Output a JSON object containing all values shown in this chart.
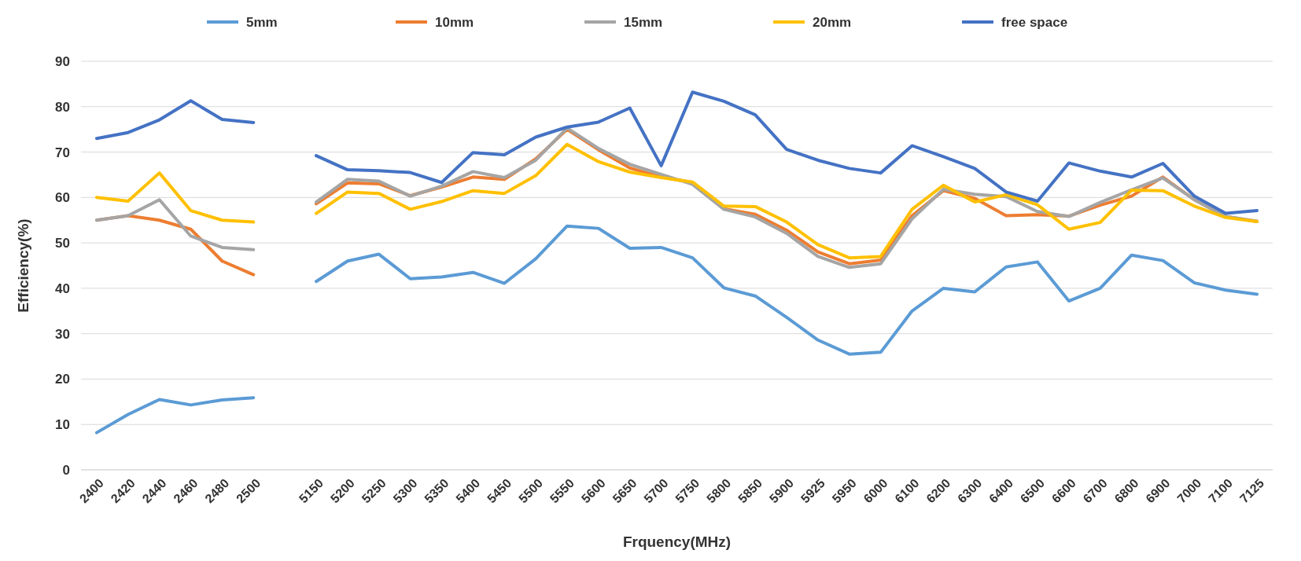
{
  "chart_data": {
    "type": "line",
    "xlabel": "Frquency(MHz)",
    "ylabel": "Efficiency(%)",
    "categories": [
      "2400",
      "2420",
      "2440",
      "2460",
      "2480",
      "2500",
      null,
      "5150",
      "5200",
      "5250",
      "5300",
      "5350",
      "5400",
      "5450",
      "5500",
      "5550",
      "5600",
      "5650",
      "5700",
      "5750",
      "5800",
      "5850",
      "5900",
      "5925",
      "5950",
      "6000",
      "6100",
      "6200",
      "6300",
      "6400",
      "6500",
      "6600",
      "6700",
      "6800",
      "6900",
      "7000",
      "7100",
      "7125"
    ],
    "ylim": [
      0,
      90
    ],
    "yticks": [
      0,
      10,
      20,
      30,
      40,
      50,
      60,
      70,
      80,
      90
    ],
    "grid": "y",
    "legend": "top",
    "marker": "none",
    "line_style": "solid",
    "series": [
      {
        "name": "5mm",
        "color": "#5b9bd5",
        "values": [
          8.2,
          12.2,
          15.5,
          14.3,
          15.4,
          15.9,
          null,
          41.5,
          46,
          47.5,
          42.1,
          42.5,
          43.5,
          41.1,
          46.5,
          53.7,
          53.2,
          48.8,
          49,
          46.7,
          40.1,
          38.3,
          33.6,
          28.6,
          25.5,
          25.9,
          35,
          40,
          39.2,
          44.7,
          45.8,
          37.2,
          40,
          47.3,
          46.1,
          41.2,
          39.6,
          38.7
        ]
      },
      {
        "name": "10mm",
        "color": "#ed7d31",
        "values": [
          55,
          56,
          55,
          53,
          46,
          43,
          null,
          58.6,
          63.2,
          63,
          60.4,
          62.3,
          64.5,
          64,
          68.5,
          75,
          70.5,
          66.5,
          64.5,
          63.3,
          57.5,
          56.3,
          52.8,
          48,
          45.4,
          46.2,
          56,
          61.5,
          59.8,
          56,
          56.2,
          55.9,
          58.3,
          60.3,
          64.5,
          59.5,
          55.8,
          54.7
        ]
      },
      {
        "name": "15mm",
        "color": "#a5a5a5",
        "values": [
          55,
          56,
          59.5,
          51.5,
          49,
          48.5,
          null,
          59,
          64,
          63.6,
          60.3,
          62.5,
          65.7,
          64.4,
          68.2,
          75.3,
          70.8,
          67.3,
          65.1,
          62.9,
          57.4,
          55.7,
          52.1,
          47,
          44.6,
          45.4,
          55.3,
          61.8,
          60.7,
          60.2,
          56.9,
          55.8,
          58.9,
          61.7,
          64.3,
          59.5,
          55.8,
          54.8
        ]
      },
      {
        "name": "20mm",
        "color": "#ffc000",
        "values": [
          60,
          59.2,
          65.4,
          57.1,
          55,
          54.6,
          null,
          56.5,
          61.2,
          60.9,
          57.4,
          59.1,
          61.5,
          60.9,
          64.8,
          71.7,
          67.9,
          65.6,
          64.4,
          63.4,
          58.1,
          58,
          54.6,
          49.6,
          46.7,
          47,
          57.4,
          62.7,
          59,
          60.6,
          58.4,
          53,
          54.5,
          61.6,
          61.5,
          58.1,
          55.6,
          54.7
        ]
      },
      {
        "name": "free space",
        "color": "#4472c4",
        "values": [
          73,
          74.3,
          77.1,
          81.3,
          77.2,
          76.5,
          null,
          69.2,
          66.1,
          65.9,
          65.5,
          63.3,
          69.9,
          69.4,
          73.3,
          75.5,
          76.6,
          79.7,
          67,
          83.2,
          81.2,
          78.2,
          70.6,
          68.2,
          66.4,
          65.4,
          71.4,
          69,
          66.4,
          61.2,
          59.2,
          67.6,
          65.8,
          64.5,
          67.5,
          60.3,
          56.5,
          57.1
        ]
      }
    ]
  }
}
